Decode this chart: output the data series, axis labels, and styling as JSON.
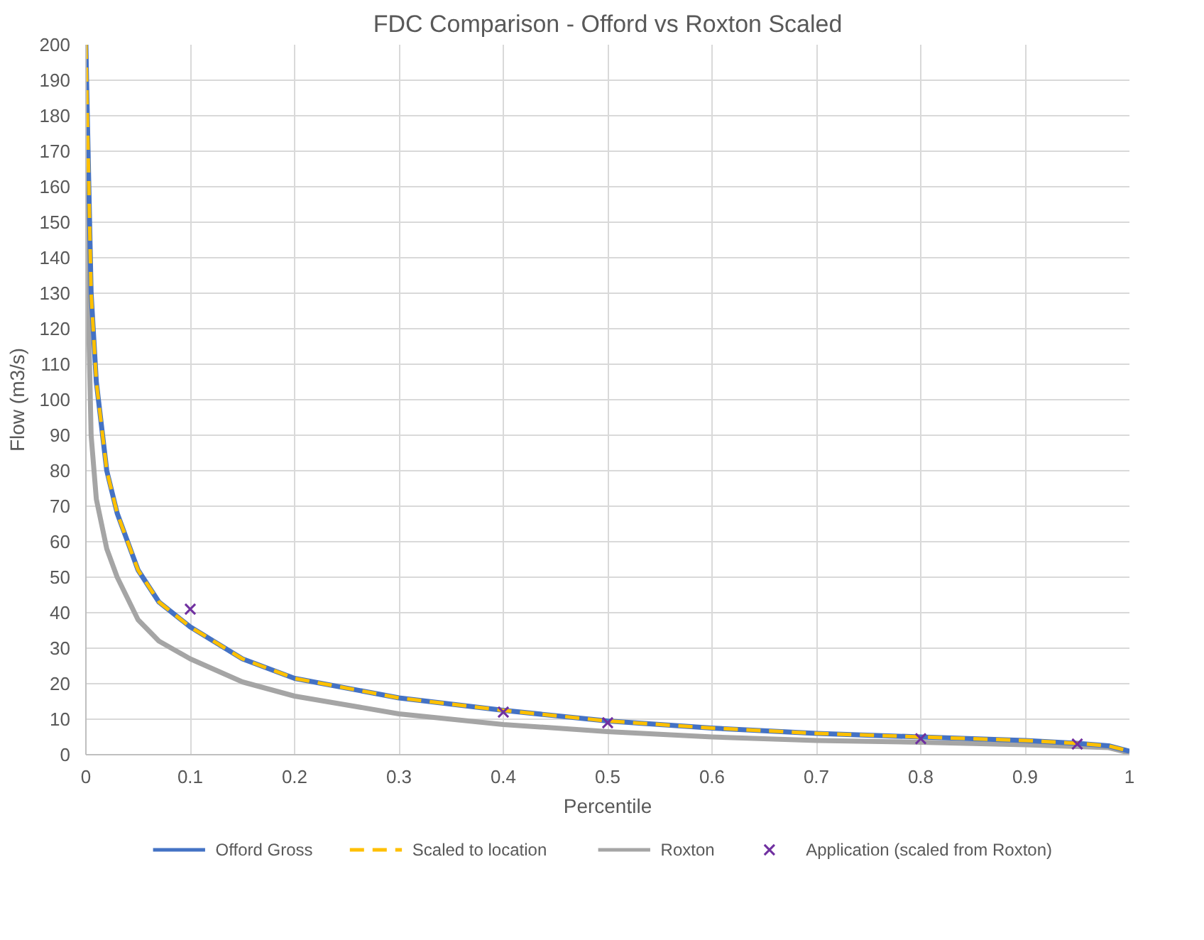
{
  "chart_data": {
    "type": "line",
    "title": "FDC Comparison - Offord vs Roxton Scaled",
    "xlabel": "Percentile",
    "ylabel": "Flow (m3/s)",
    "xlim": [
      0,
      1
    ],
    "ylim": [
      0,
      200
    ],
    "xticks": [
      0,
      0.1,
      0.2,
      0.3,
      0.4,
      0.5,
      0.6,
      0.7,
      0.8,
      0.9,
      1
    ],
    "yticks": [
      0,
      10,
      20,
      30,
      40,
      50,
      60,
      70,
      80,
      90,
      100,
      110,
      120,
      130,
      140,
      150,
      160,
      170,
      180,
      190,
      200
    ],
    "grid": true,
    "legend": "bottom",
    "series": [
      {
        "name": "Offord Gross",
        "color": "#4472c4",
        "line_style": "solid",
        "marker": "none",
        "x": [
          0,
          0.001,
          0.005,
          0.01,
          0.02,
          0.03,
          0.05,
          0.07,
          0.1,
          0.15,
          0.2,
          0.3,
          0.4,
          0.5,
          0.6,
          0.7,
          0.8,
          0.9,
          0.95,
          0.98,
          1
        ],
        "values": [
          200,
          185,
          130,
          105,
          80,
          68,
          52,
          43,
          36,
          27,
          21.5,
          16,
          12.5,
          9.5,
          7.5,
          6,
          5,
          4,
          3.2,
          2.5,
          1
        ]
      },
      {
        "name": "Scaled to location",
        "color": "#ffc000",
        "line_style": "dashed",
        "marker": "none",
        "x": [
          0,
          0.001,
          0.005,
          0.01,
          0.02,
          0.03,
          0.05,
          0.07,
          0.1,
          0.15,
          0.2,
          0.3,
          0.4,
          0.5,
          0.6,
          0.7,
          0.8,
          0.9,
          0.95,
          0.98,
          1
        ],
        "values": [
          200,
          185,
          130,
          105,
          80,
          68,
          52,
          43,
          36,
          27,
          21.5,
          16,
          12.5,
          9.5,
          7.5,
          6,
          5,
          4,
          3.2,
          2.5,
          1
        ]
      },
      {
        "name": "Roxton",
        "color": "#a5a5a5",
        "line_style": "solid",
        "marker": "none",
        "x": [
          0,
          0.002,
          0.005,
          0.01,
          0.02,
          0.03,
          0.05,
          0.07,
          0.1,
          0.15,
          0.2,
          0.3,
          0.4,
          0.5,
          0.6,
          0.7,
          0.8,
          0.9,
          0.95,
          0.98,
          1
        ],
        "values": [
          180,
          130,
          90,
          72,
          58,
          50,
          38,
          32,
          27,
          20.5,
          16.5,
          11.5,
          8.5,
          6.5,
          5,
          4,
          3.5,
          2.8,
          2.3,
          2,
          0.5
        ]
      },
      {
        "name": "Application (scaled from Roxton)",
        "color": "#7030a0",
        "type": "scatter",
        "marker": "cross",
        "x": [
          0.1,
          0.4,
          0.5,
          0.8,
          0.95
        ],
        "values": [
          41,
          12,
          9,
          4.5,
          3
        ]
      }
    ]
  }
}
